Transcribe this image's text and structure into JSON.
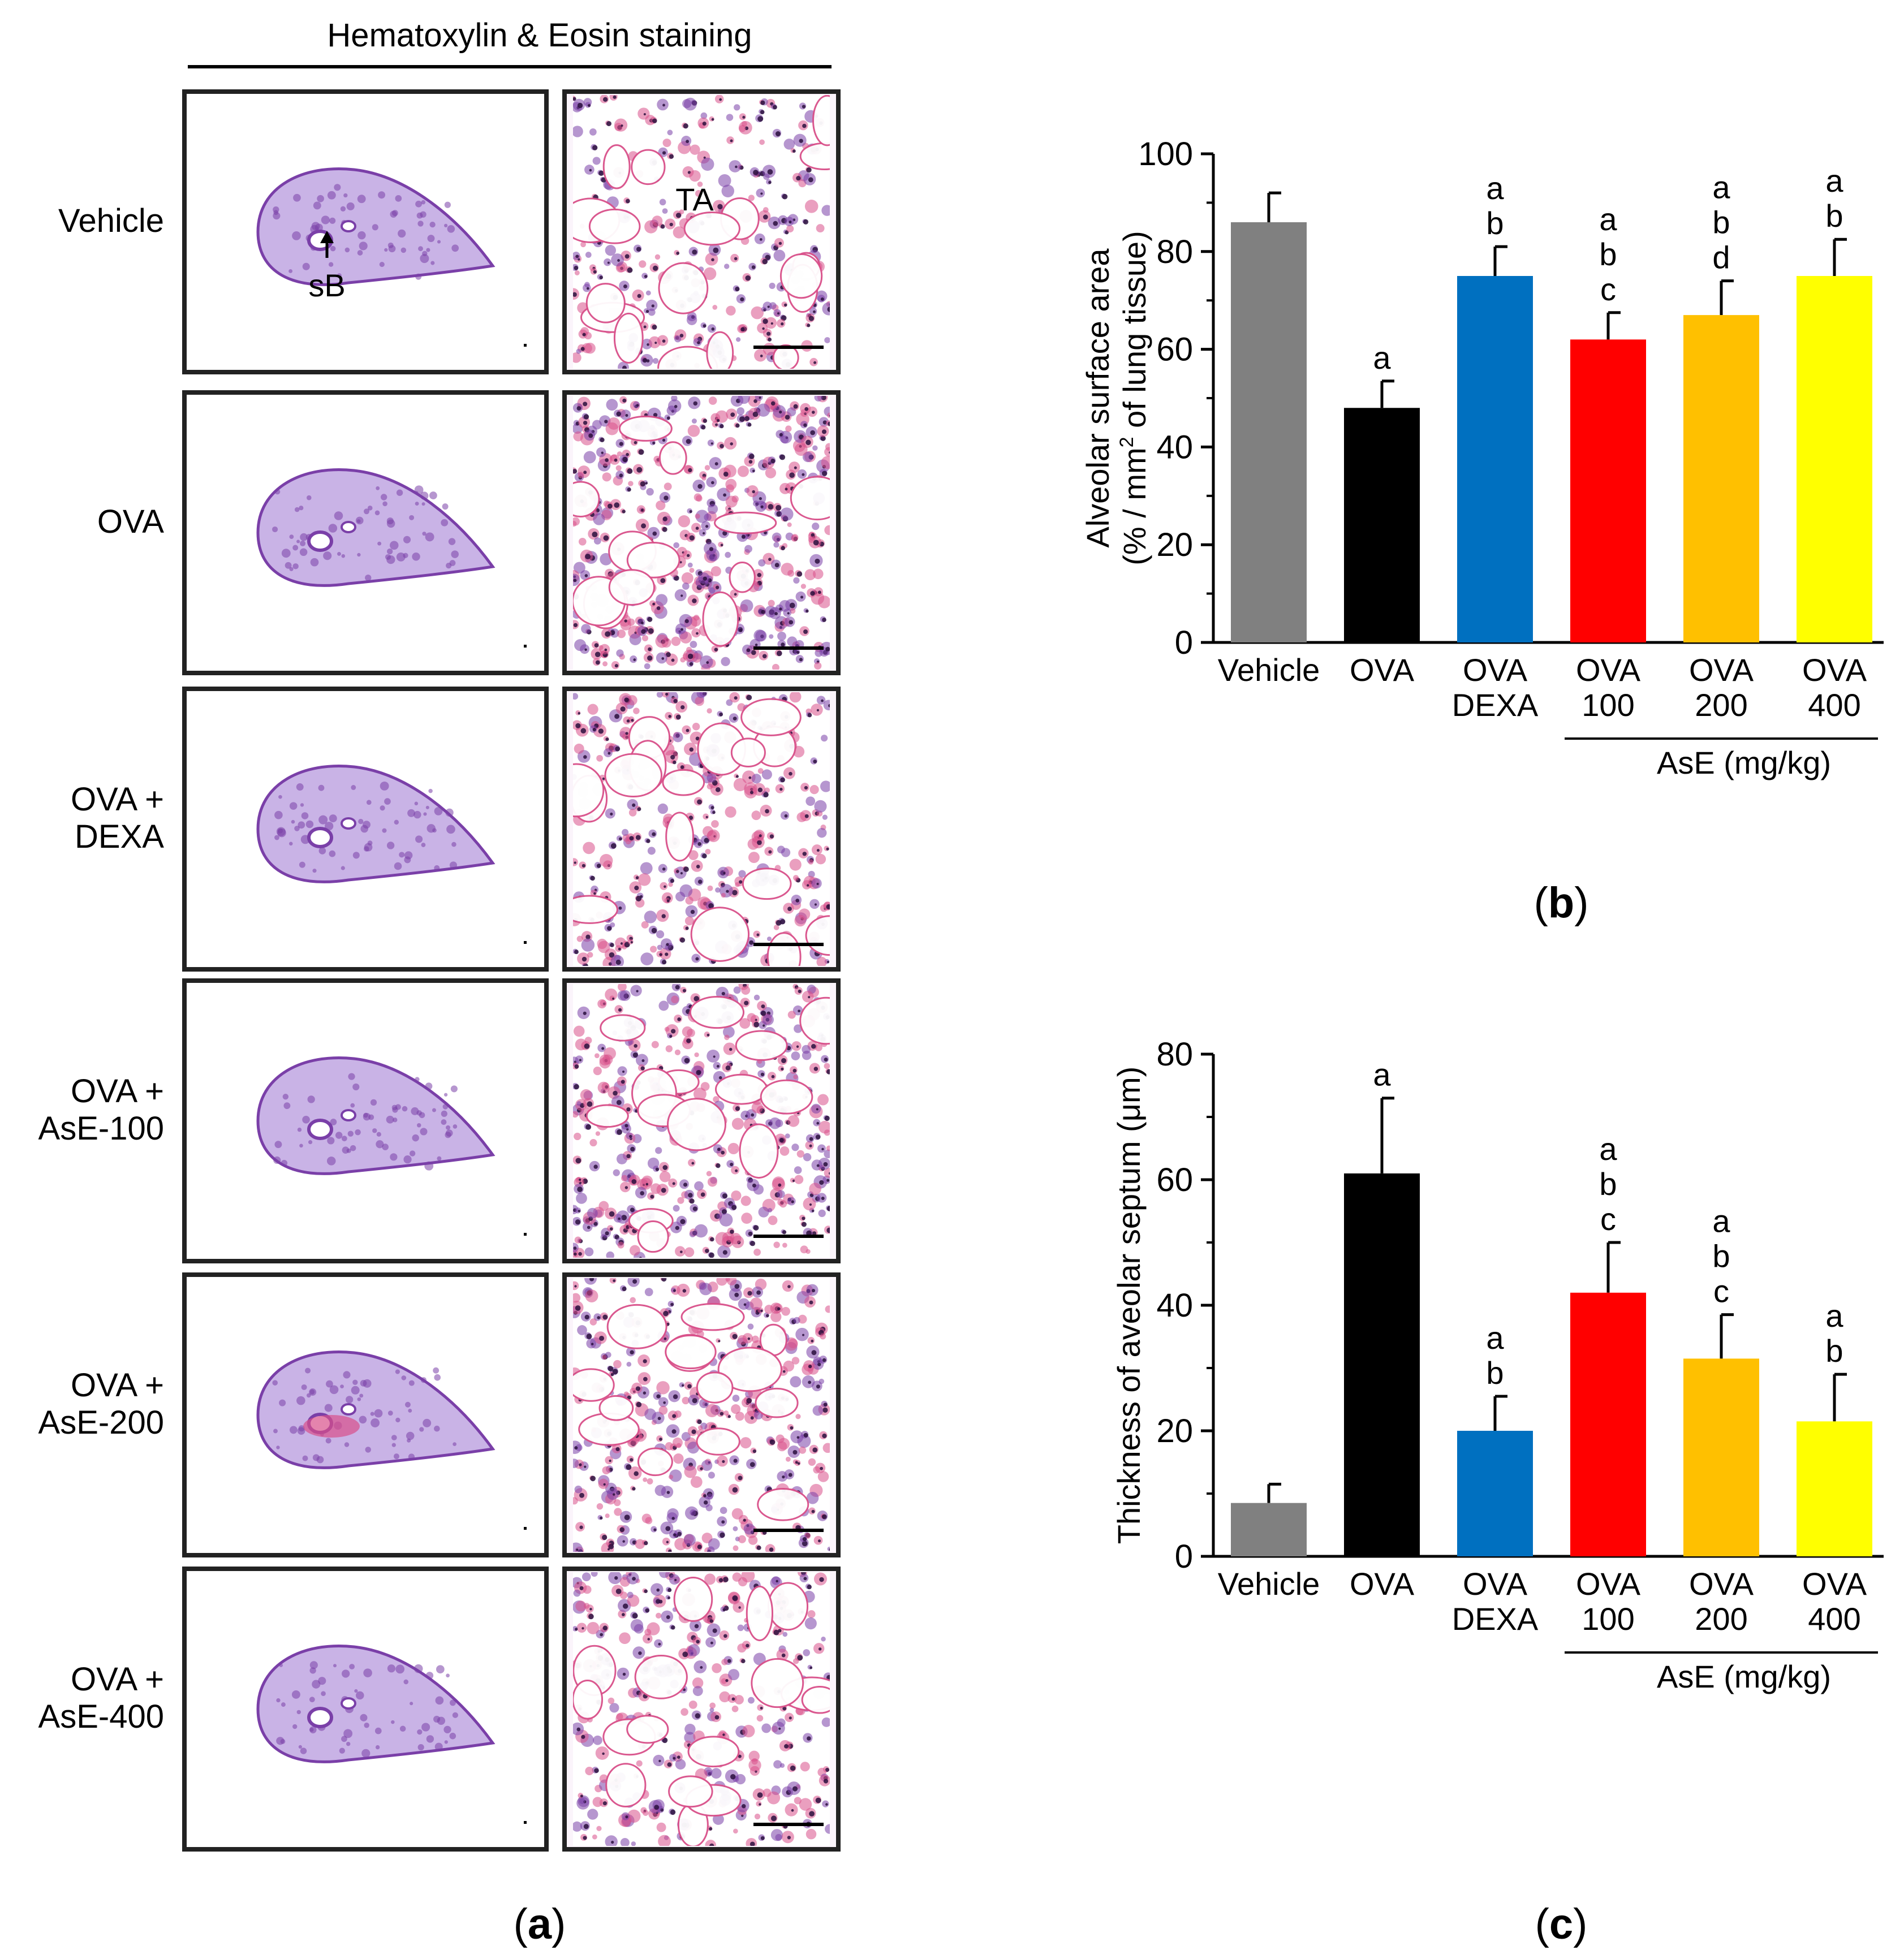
{
  "panel_a": {
    "header": "Hematoxylin & Eosin staining",
    "rows": [
      {
        "label_lines": [
          "Vehicle"
        ]
      },
      {
        "label_lines": [
          "OVA"
        ]
      },
      {
        "label_lines": [
          "OVA +",
          "DEXA"
        ]
      },
      {
        "label_lines": [
          "OVA +",
          "AsE-100"
        ]
      },
      {
        "label_lines": [
          "OVA +",
          "AsE-200"
        ]
      },
      {
        "label_lines": [
          "OVA +",
          "AsE-400"
        ]
      }
    ],
    "annotations": {
      "small_bronchiole": "sB",
      "alveolus": "TA"
    },
    "caption": {
      "open": "(",
      "letter": "a",
      "close": ")"
    },
    "colors": {
      "stain_purple": "#7a3fa8",
      "stain_pink": "#d9508a",
      "nuclei": "#2a0f3d"
    }
  },
  "chart_data": [
    {
      "id": "b",
      "type": "bar",
      "ylabel_line1": "Alveolar surface area",
      "ylabel_line2_pre": "(% / mm",
      "ylabel_line2_sup": "2",
      "ylabel_line2_post": " of lung tissue)",
      "ylim": [
        0,
        100
      ],
      "yticks": [
        0,
        20,
        40,
        60,
        80,
        100
      ],
      "categories": [
        {
          "lines": [
            "Vehicle"
          ]
        },
        {
          "lines": [
            "OVA"
          ]
        },
        {
          "lines": [
            "OVA",
            "DEXA"
          ]
        },
        {
          "lines": [
            "OVA",
            "100"
          ]
        },
        {
          "lines": [
            "OVA",
            "200"
          ]
        },
        {
          "lines": [
            "OVA",
            "400"
          ]
        }
      ],
      "values": [
        86,
        48,
        75,
        62,
        67,
        75
      ],
      "errors": [
        6,
        5.5,
        6,
        5.5,
        7,
        7.5
      ],
      "significance": [
        [],
        [
          "a"
        ],
        [
          "a",
          "b"
        ],
        [
          "a",
          "b",
          "c"
        ],
        [
          "a",
          "b",
          "d"
        ],
        [
          "a",
          "b"
        ]
      ],
      "colors": [
        "#808080",
        "#000000",
        "#0070c0",
        "#ff0000",
        "#ffc000",
        "#ffff00"
      ],
      "group_label": "AsE (mg/kg)",
      "caption": {
        "open": "(",
        "letter": "b",
        "close": ")"
      }
    },
    {
      "id": "c",
      "type": "bar",
      "ylabel": "Thickness of aveolar septum (μm)",
      "ylim": [
        0,
        80
      ],
      "yticks": [
        0,
        20,
        40,
        60,
        80
      ],
      "categories": [
        {
          "lines": [
            "Vehicle"
          ]
        },
        {
          "lines": [
            "OVA"
          ]
        },
        {
          "lines": [
            "OVA",
            "DEXA"
          ]
        },
        {
          "lines": [
            "OVA",
            "100"
          ]
        },
        {
          "lines": [
            "OVA",
            "200"
          ]
        },
        {
          "lines": [
            "OVA",
            "400"
          ]
        }
      ],
      "values": [
        8.5,
        61,
        20,
        42,
        31.5,
        21.5
      ],
      "errors": [
        3,
        12,
        5.5,
        8,
        7,
        7.5
      ],
      "significance": [
        [],
        [
          "a"
        ],
        [
          "a",
          "b"
        ],
        [
          "a",
          "b",
          "c"
        ],
        [
          "a",
          "b",
          "c"
        ],
        [
          "a",
          "b"
        ]
      ],
      "colors": [
        "#808080",
        "#000000",
        "#0070c0",
        "#ff0000",
        "#ffc000",
        "#ffff00"
      ],
      "group_label": "AsE (mg/kg)",
      "caption": {
        "open": "(",
        "letter": "c",
        "close": ")"
      }
    }
  ]
}
